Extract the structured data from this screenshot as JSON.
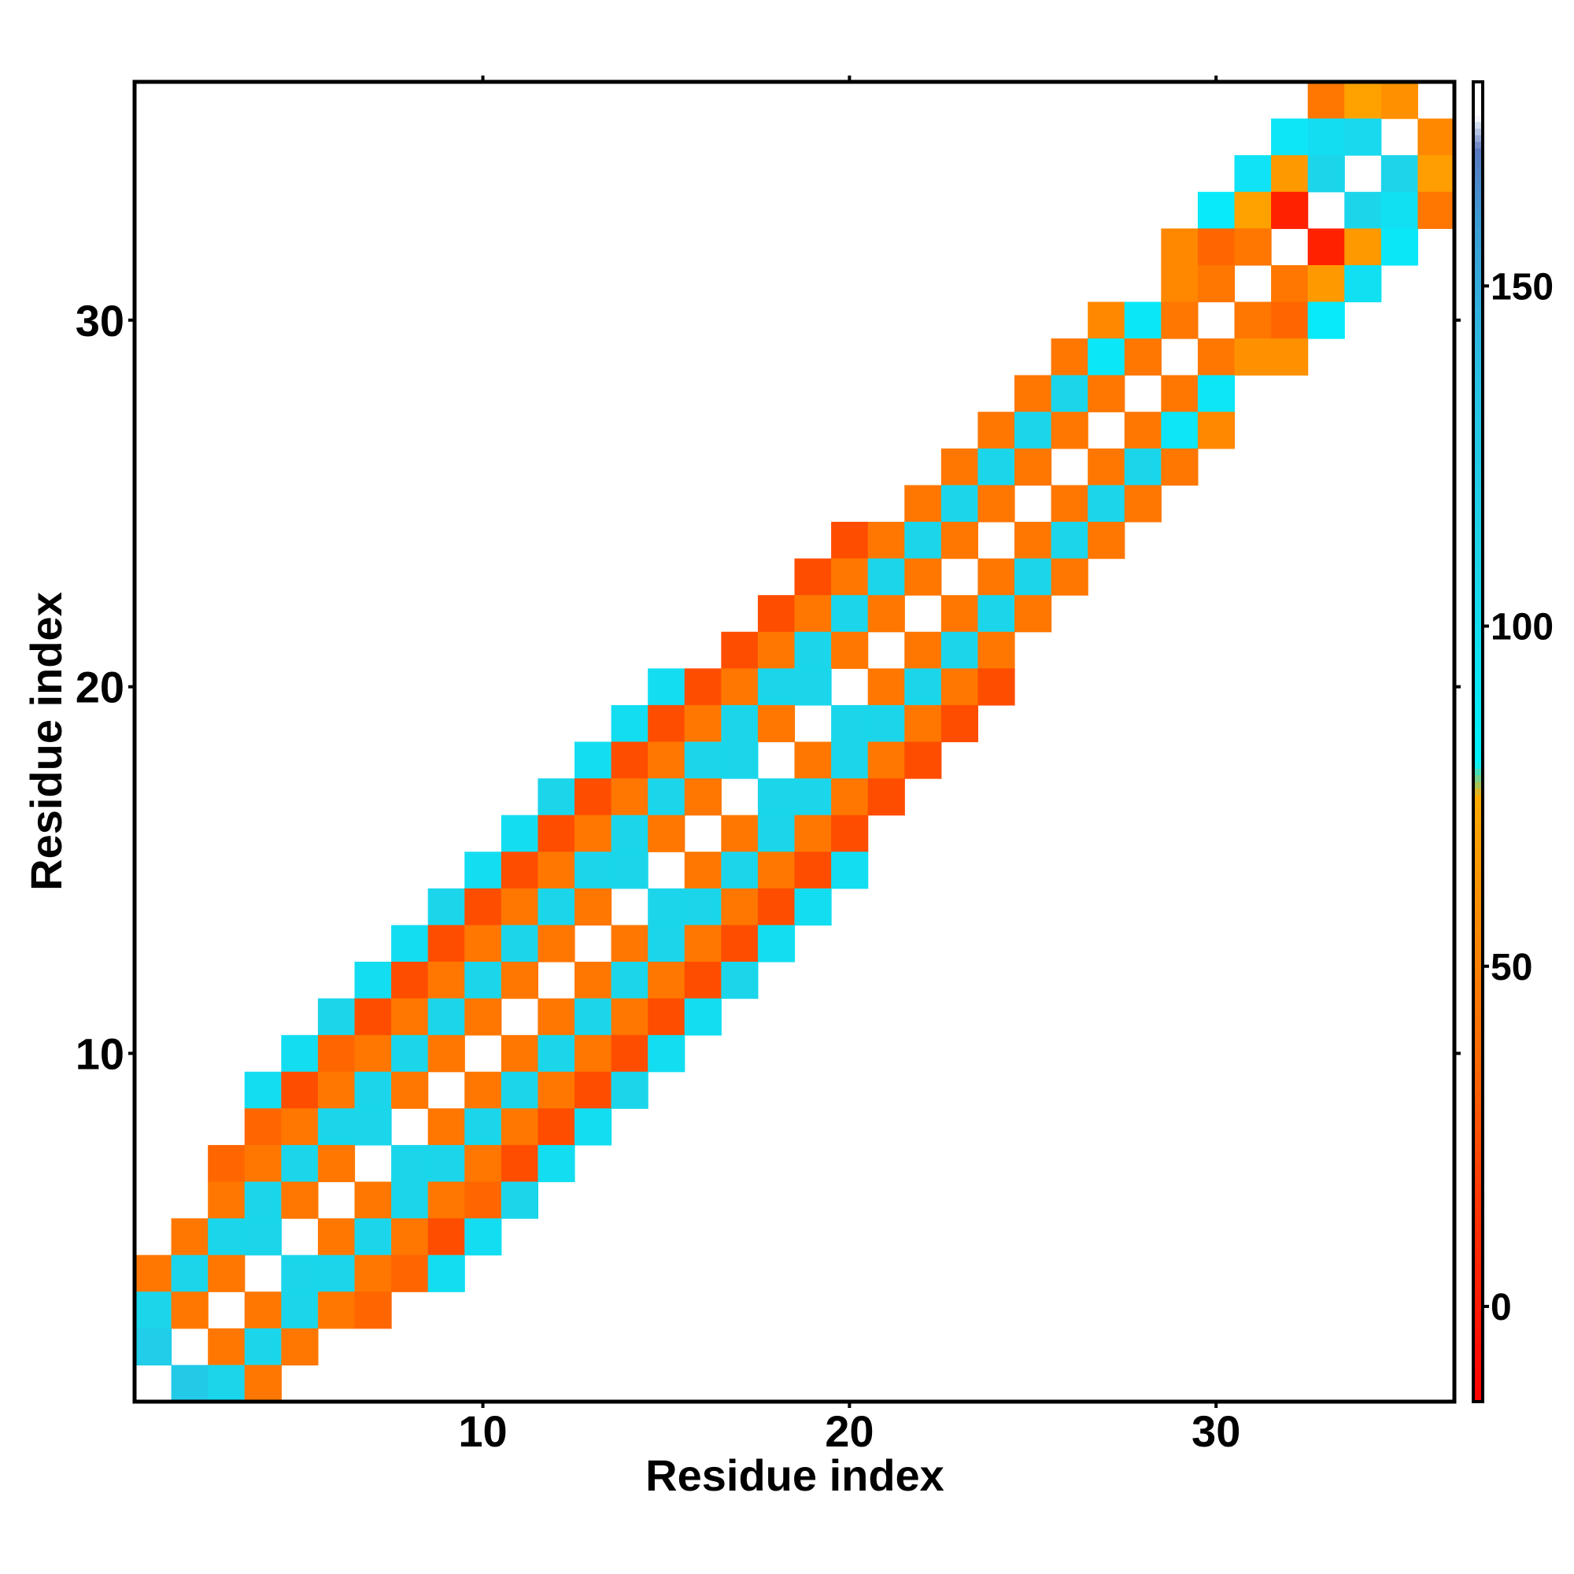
{
  "chart_data": {
    "type": "heatmap",
    "xlabel": "Residue index",
    "ylabel": "Residue index",
    "xlim": [
      0.5,
      36.5
    ],
    "ylim": [
      0.5,
      36.5
    ],
    "x_ticks": [
      10,
      20,
      30
    ],
    "y_ticks": [
      10,
      20,
      30
    ],
    "colorbar": {
      "range": [
        -14,
        180
      ],
      "ticks": [
        0,
        50,
        100,
        150
      ],
      "stops": [
        {
          "value": -14,
          "color": "#ff0000"
        },
        {
          "value": 15,
          "color": "#ff3300"
        },
        {
          "value": 35,
          "color": "#ff6600"
        },
        {
          "value": 55,
          "color": "#ff8800"
        },
        {
          "value": 75,
          "color": "#ffaa00"
        },
        {
          "value": 80,
          "color": "#00f2ff"
        },
        {
          "value": 110,
          "color": "#1dd4ea"
        },
        {
          "value": 135,
          "color": "#27c3e6"
        },
        {
          "value": 160,
          "color": "#3b9bd6"
        },
        {
          "value": 170,
          "color": "#5a78c0"
        },
        {
          "value": 175,
          "color": "#ffffff"
        },
        {
          "value": 180,
          "color": "#ffffff"
        }
      ]
    },
    "rows": [
      {
        "y": 36,
        "start": 33,
        "values": [
          45,
          70,
          60,
          null
        ]
      },
      {
        "y": 35,
        "start": 32,
        "values": [
          92,
          100,
          105,
          null,
          55
        ]
      },
      {
        "y": 34,
        "start": 31,
        "values": [
          95,
          65,
          108,
          null,
          110,
          68
        ]
      },
      {
        "y": 33,
        "start": 30,
        "values": [
          88,
          70,
          5,
          null,
          108,
          98,
          45
        ]
      },
      {
        "y": 32,
        "start": 29,
        "values": [
          55,
          35,
          45,
          null,
          5,
          65,
          90
        ]
      },
      {
        "y": 31,
        "start": 29,
        "values": [
          55,
          45,
          null,
          45,
          65,
          98
        ]
      },
      {
        "y": 30,
        "start": 27,
        "values": [
          55,
          90,
          45,
          null,
          45,
          35,
          88
        ]
      },
      {
        "y": 29,
        "start": 26,
        "values": [
          45,
          90,
          45,
          null,
          45,
          60,
          60
        ]
      },
      {
        "y": 28,
        "start": 25,
        "values": [
          45,
          108,
          45,
          null,
          45,
          92
        ]
      },
      {
        "y": 27,
        "start": 24,
        "values": [
          45,
          108,
          45,
          null,
          45,
          92,
          55
        ]
      },
      {
        "y": 26,
        "start": 23,
        "values": [
          45,
          108,
          45,
          null,
          45,
          108,
          45
        ]
      },
      {
        "y": 25,
        "start": 22,
        "values": [
          45,
          108,
          45,
          null,
          45,
          108,
          45
        ]
      },
      {
        "y": 24,
        "start": 20,
        "values": [
          25,
          45,
          108,
          45,
          null,
          45,
          108,
          45
        ]
      },
      {
        "y": 23,
        "start": 19,
        "values": [
          25,
          45,
          108,
          45,
          null,
          45,
          108,
          45
        ]
      },
      {
        "y": 22,
        "start": 18,
        "values": [
          25,
          45,
          108,
          45,
          null,
          45,
          108,
          45
        ]
      },
      {
        "y": 21,
        "start": 17,
        "values": [
          25,
          45,
          108,
          45,
          null,
          45,
          108,
          45
        ]
      },
      {
        "y": 20,
        "start": 15,
        "values": [
          100,
          25,
          45,
          108,
          108,
          null,
          45,
          108,
          45,
          25
        ]
      },
      {
        "y": 19,
        "start": 14,
        "values": [
          100,
          25,
          45,
          108,
          45,
          null,
          108,
          108,
          45,
          25
        ]
      },
      {
        "y": 18,
        "start": 13,
        "values": [
          100,
          25,
          45,
          108,
          108,
          null,
          45,
          108,
          45,
          25
        ]
      },
      {
        "y": 17,
        "start": 12,
        "values": [
          108,
          25,
          45,
          108,
          45,
          null,
          108,
          108,
          45,
          25
        ]
      },
      {
        "y": 16,
        "start": 11,
        "values": [
          100,
          25,
          45,
          108,
          45,
          null,
          45,
          108,
          45,
          25
        ]
      },
      {
        "y": 15,
        "start": 10,
        "values": [
          100,
          25,
          45,
          108,
          108,
          null,
          45,
          108,
          45,
          25,
          100
        ]
      },
      {
        "y": 14,
        "start": 9,
        "values": [
          108,
          25,
          45,
          108,
          45,
          null,
          108,
          108,
          45,
          25,
          100
        ]
      },
      {
        "y": 13,
        "start": 8,
        "values": [
          100,
          25,
          45,
          108,
          45,
          null,
          45,
          108,
          45,
          25,
          100
        ]
      },
      {
        "y": 12,
        "start": 7,
        "values": [
          100,
          25,
          45,
          108,
          45,
          null,
          45,
          108,
          45,
          25,
          108
        ]
      },
      {
        "y": 11,
        "start": 6,
        "values": [
          108,
          25,
          45,
          108,
          45,
          null,
          45,
          108,
          45,
          25,
          100
        ]
      },
      {
        "y": 10,
        "start": 5,
        "values": [
          100,
          35,
          45,
          108,
          45,
          null,
          45,
          108,
          45,
          25,
          100
        ]
      },
      {
        "y": 9,
        "start": 4,
        "values": [
          100,
          25,
          45,
          108,
          45,
          null,
          45,
          108,
          45,
          25,
          108
        ]
      },
      {
        "y": 8,
        "start": 4,
        "values": [
          35,
          45,
          108,
          108,
          null,
          45,
          108,
          45,
          25,
          100
        ]
      },
      {
        "y": 7,
        "start": 3,
        "values": [
          35,
          45,
          108,
          45,
          null,
          108,
          108,
          45,
          25,
          100
        ]
      },
      {
        "y": 6,
        "start": 3,
        "values": [
          45,
          108,
          45,
          null,
          45,
          108,
          45,
          35,
          108
        ]
      },
      {
        "y": 5,
        "start": 2,
        "values": [
          45,
          108,
          108,
          null,
          45,
          108,
          45,
          25,
          100
        ]
      },
      {
        "y": 4,
        "start": 1,
        "values": [
          45,
          108,
          45,
          null,
          108,
          108,
          45,
          35,
          100
        ]
      },
      {
        "y": 3,
        "start": 1,
        "values": [
          108,
          45,
          null,
          45,
          108,
          45,
          35
        ]
      },
      {
        "y": 2,
        "start": 1,
        "values": [
          120,
          null,
          45,
          108,
          45
        ]
      },
      {
        "y": 1,
        "start": 1,
        "values": [
          null,
          125,
          108,
          45
        ]
      }
    ]
  }
}
